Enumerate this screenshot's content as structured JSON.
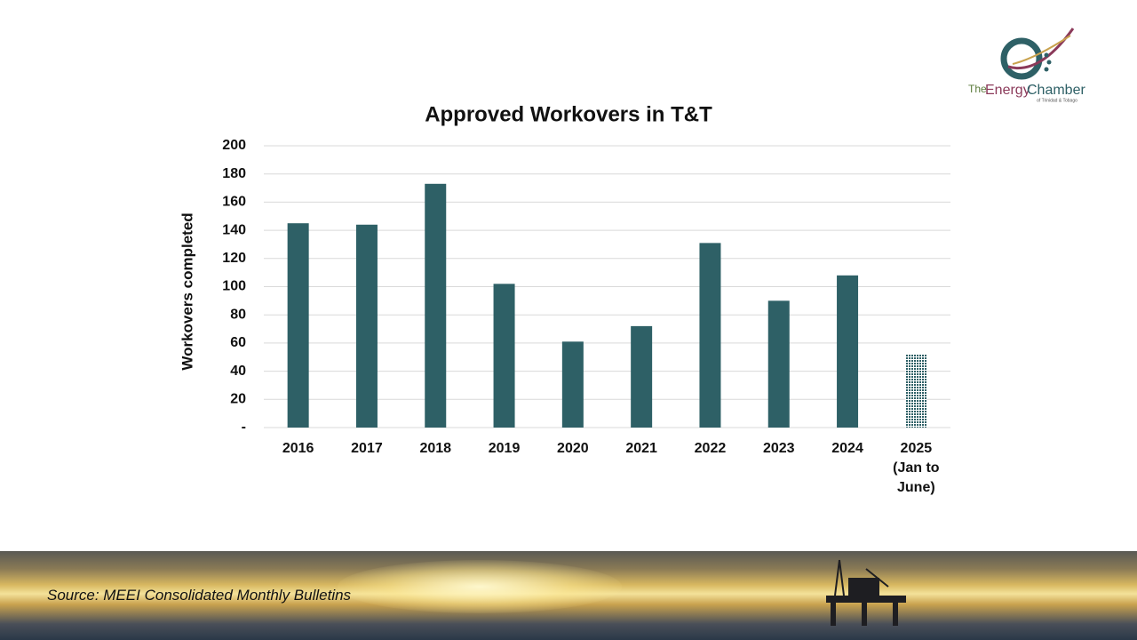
{
  "chart_data": {
    "type": "bar",
    "title": "Approved Workovers  in T&T",
    "y_label": "Workovers completed",
    "categories": [
      "2016",
      "2017",
      "2018",
      "2019",
      "2020",
      "2021",
      "2022",
      "2023",
      "2024",
      "2025 (Jan to June)"
    ],
    "values": [
      145,
      144,
      173,
      102,
      61,
      72,
      131,
      90,
      108,
      52
    ],
    "bar_styles": [
      "solid",
      "solid",
      "solid",
      "solid",
      "solid",
      "solid",
      "solid",
      "solid",
      "solid",
      "dotted"
    ],
    "color": "#2e6066",
    "ylim": [
      0,
      200
    ],
    "yticks": [
      {
        "value": 0,
        "label": "-"
      },
      20,
      40,
      60,
      80,
      100,
      120,
      140,
      160,
      180,
      200
    ],
    "grid": true
  },
  "source": "Source: MEEI Consolidated Monthly Bulletins",
  "logo": {
    "name_the": "The",
    "name_energy": "Energy",
    "name_chamber": "Chamber",
    "subtitle": "of Trinidad & Tobago"
  }
}
